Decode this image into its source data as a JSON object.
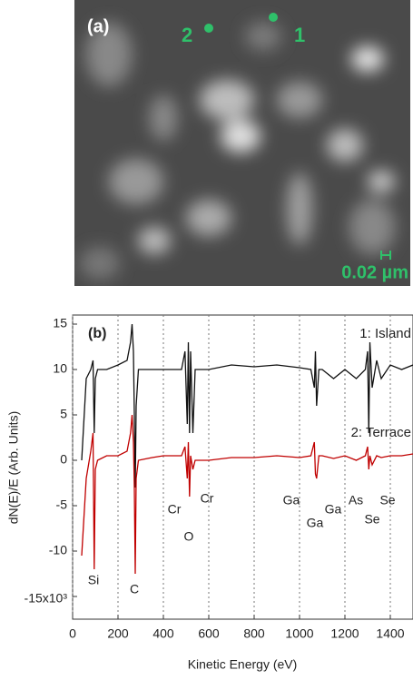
{
  "image_panel": {
    "label": "(a)",
    "points": [
      "1",
      "2"
    ],
    "scale_bar": "0.02 µm"
  },
  "chart_data": {
    "type": "line",
    "panel_label": "(b)",
    "xlabel": "Kinetic Energy (eV)",
    "ylabel": "dN(E)/E (Arb. Units)",
    "x": [
      40,
      60,
      80,
      90,
      95,
      100,
      110,
      150,
      200,
      240,
      255,
      262,
      268,
      272,
      276,
      280,
      290,
      350,
      400,
      480,
      495,
      505,
      510,
      515,
      520,
      530,
      540,
      600,
      700,
      800,
      900,
      1000,
      1050,
      1065,
      1070,
      1075,
      1085,
      1100,
      1150,
      1200,
      1250,
      1290,
      1300,
      1305,
      1310,
      1320,
      1340,
      1360,
      1400,
      1450,
      1500
    ],
    "series": [
      {
        "name": "1: Island",
        "color": "#111111",
        "values": [
          0,
          9,
          10,
          11,
          3,
          9,
          10,
          10,
          10.5,
          11,
          13,
          15,
          12,
          5,
          -3,
          6,
          10,
          10,
          10,
          10,
          12,
          4,
          13,
          3,
          12,
          3,
          10,
          10,
          10.5,
          10.3,
          10.5,
          10.2,
          10,
          8,
          12,
          6,
          10,
          10,
          9,
          10,
          9,
          10,
          12,
          3,
          13,
          8,
          11,
          9,
          10.5,
          10,
          10.5
        ]
      },
      {
        "name": "2: Terrace",
        "color": "#c00000",
        "values": [
          -10.5,
          -2,
          1,
          3,
          -12,
          -1,
          0,
          0.5,
          0.5,
          1,
          3,
          5,
          2,
          -3,
          -12.5,
          -2,
          0,
          0.3,
          0.5,
          0.5,
          1.5,
          -2,
          2,
          -4,
          0.5,
          -1,
          0,
          0,
          0.3,
          0.3,
          0.5,
          0.3,
          0.5,
          2,
          -1.5,
          -2,
          0.5,
          0.5,
          0.2,
          0.5,
          0,
          0.5,
          1.5,
          -1,
          0.5,
          -0.5,
          0.5,
          0.3,
          0.5,
          0.5,
          0.7
        ]
      }
    ],
    "annotations": [
      "Si",
      "C",
      "Cr",
      "Cr",
      "O",
      "Ga",
      "Ga",
      "Ga",
      "As",
      "Se",
      "Se"
    ],
    "xlim": [
      0,
      1500
    ],
    "xticks": [
      0,
      200,
      400,
      600,
      800,
      1000,
      1200,
      1400
    ],
    "ylim": [
      -17.5,
      16
    ],
    "yticks": [
      {
        "value": -15,
        "label": "-15x10³"
      },
      -10,
      -5,
      0,
      5,
      10,
      15
    ],
    "grid": "x"
  }
}
